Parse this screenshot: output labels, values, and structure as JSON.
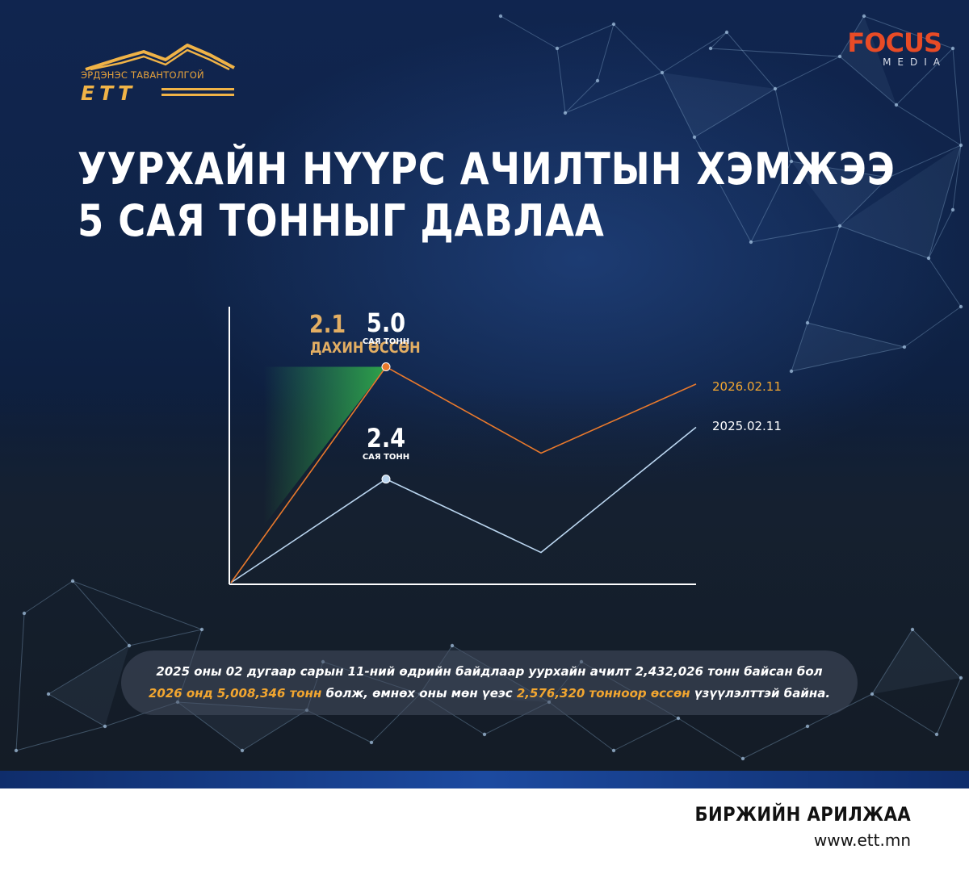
{
  "logos": {
    "ett_name": "ЭРДЭНЭС ТАВАНТОЛГОЙ",
    "ett_mark": "ЕТТ",
    "focus_word": "FOCUS",
    "focus_sub": "MEDIA"
  },
  "headline": {
    "line1": "УУРХАЙН НҮҮРС АЧИЛТЫН ХЭМЖЭЭ",
    "line2": "5 САЯ ТОННЫГ ДАВЛАА"
  },
  "chart_data": {
    "type": "line",
    "grid": false,
    "x": [
      0,
      1,
      2,
      3
    ],
    "series": [
      {
        "name": "2025.02.11",
        "color": "#b9d4ee",
        "values": [
          0,
          2.4,
          0.7,
          3.6
        ],
        "marker_index": 1,
        "value_label": "2.4",
        "unit_label": "САЯ ТОНН"
      },
      {
        "name": "2026.02.11",
        "color": "#e9792c",
        "values": [
          0,
          5.0,
          3.0,
          4.6
        ],
        "marker_index": 1,
        "value_label": "5.0",
        "unit_label": "САЯ ТОНН"
      }
    ],
    "annotation": {
      "value": "2.1",
      "label": "ДАХИН ӨССӨН",
      "color": "#e3ae63",
      "fill_color": "#2fa84a"
    }
  },
  "caption": {
    "line1": "2025 оны 02 дугаар сарын 11-ний өдрийн байдлаар уурхайн ачилт 2,432,026 тонн байсан бол",
    "line2_hl1": "2026 онд 5,008,346 тонн",
    "line2_mid": " болж, өмнөх оны мөн үеэс ",
    "line2_hl2": "2,576,320 тонноор өссөн",
    "line2_end": " үзүүлэлттэй байна.",
    "highlight_color": "#f2a630"
  },
  "footer": {
    "title": "БИРЖИЙН АРИЛЖАА",
    "url": "www.ett.mn"
  }
}
